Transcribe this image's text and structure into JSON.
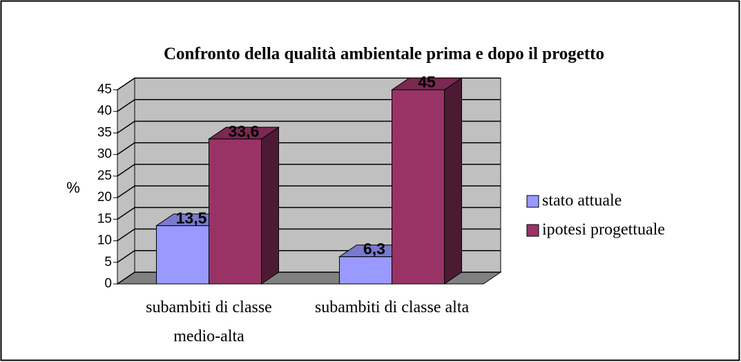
{
  "chart_data": {
    "type": "bar3d",
    "title": "Confronto della qualità ambientale prima e dopo il progetto",
    "ylabel": "%",
    "categories": [
      "subambiti di classe medio-alta",
      "subambiti di classe alta"
    ],
    "series": [
      {
        "name": "stato attuale",
        "color": "#9999ff",
        "values": [
          13.5,
          6.3
        ],
        "value_labels": [
          "13,5",
          "6,3"
        ]
      },
      {
        "name": "ipotesi progettuale",
        "color": "#993366",
        "values": [
          33.6,
          45
        ],
        "value_labels": [
          "33,6",
          "45"
        ]
      }
    ],
    "ylim": [
      0,
      45
    ],
    "yticks": [
      0,
      5,
      10,
      15,
      20,
      25,
      30,
      35,
      40,
      45
    ],
    "grid": true,
    "legend": "right"
  }
}
